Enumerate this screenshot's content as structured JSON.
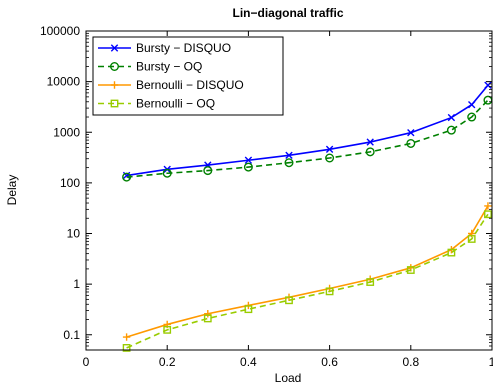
{
  "chart_data": {
    "type": "line",
    "title": "Lin−diagonal traffic",
    "xlabel": "Load",
    "ylabel": "Delay",
    "xlim": [
      0,
      1
    ],
    "ylim": [
      0.05,
      100000
    ],
    "yscale": "log",
    "x_ticks": [
      0,
      0.2,
      0.4,
      0.6,
      0.8,
      1
    ],
    "x_tick_labels": [
      "0",
      "0.2",
      "0.4",
      "0.6",
      "0.8",
      "1"
    ],
    "y_ticks": [
      0.1,
      1,
      10,
      100,
      1000,
      10000,
      100000
    ],
    "y_tick_labels": [
      "0.1",
      "1",
      "10",
      "100",
      "1000",
      "10000",
      "100000"
    ],
    "grid": false,
    "legend_position": "top-left",
    "series": [
      {
        "name": "Bursty − DISQUO",
        "color": "#0000ff",
        "line_style": "solid",
        "marker": "x",
        "x": [
          0.1,
          0.2,
          0.3,
          0.4,
          0.5,
          0.6,
          0.7,
          0.8,
          0.9,
          0.95,
          0.99
        ],
        "values": [
          140,
          185,
          225,
          280,
          350,
          460,
          640,
          980,
          1950,
          3500,
          8500
        ]
      },
      {
        "name": "Bursty − OQ",
        "color": "#008000",
        "line_style": "dashed",
        "marker": "circle",
        "x": [
          0.1,
          0.2,
          0.3,
          0.4,
          0.5,
          0.6,
          0.7,
          0.8,
          0.9,
          0.95,
          0.99
        ],
        "values": [
          130,
          155,
          175,
          205,
          250,
          310,
          410,
          600,
          1100,
          2000,
          4300
        ]
      },
      {
        "name": "Bernoulli − DISQUO",
        "color": "#ff9900",
        "line_style": "solid",
        "marker": "plus",
        "x": [
          0.1,
          0.2,
          0.3,
          0.4,
          0.5,
          0.6,
          0.7,
          0.8,
          0.9,
          0.95,
          0.99
        ],
        "values": [
          0.09,
          0.16,
          0.26,
          0.38,
          0.55,
          0.82,
          1.25,
          2.1,
          4.8,
          10,
          35
        ]
      },
      {
        "name": "Bernoulli − OQ",
        "color": "#99cc00",
        "line_style": "dashed",
        "marker": "square",
        "x": [
          0.1,
          0.2,
          0.3,
          0.4,
          0.5,
          0.6,
          0.7,
          0.8,
          0.9,
          0.95,
          0.99
        ],
        "values": [
          0.055,
          0.125,
          0.21,
          0.32,
          0.48,
          0.72,
          1.1,
          1.9,
          4.2,
          7.8,
          24
        ]
      }
    ]
  }
}
